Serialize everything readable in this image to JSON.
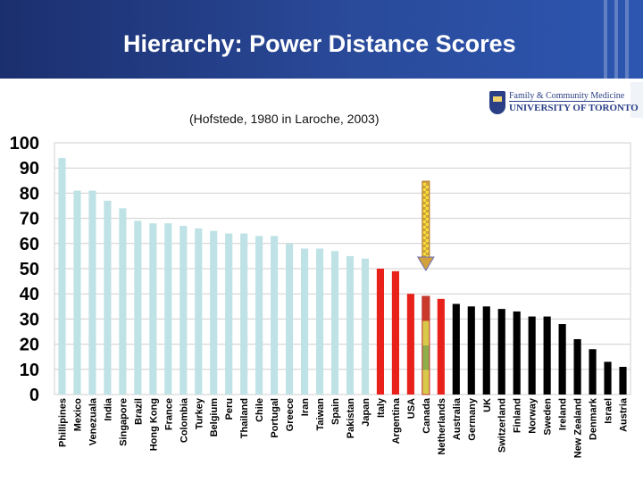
{
  "slide": {
    "title": "Hierarchy: Power Distance Scores",
    "subtitle": "(Hofstede, 1980 in Laroche, 2003)",
    "logo": {
      "line1": "Family & Community Medicine",
      "line2": "UNIVERSITY OF TORONTO"
    }
  },
  "chart_data": {
    "type": "bar",
    "title": "Hierarchy: Power Distance Scores",
    "subtitle": "(Hofstede, 1980 in Laroche, 2003)",
    "xlabel": "",
    "ylabel": "",
    "ylim": [
      0,
      100
    ],
    "yticks": [
      0,
      10,
      20,
      30,
      40,
      50,
      60,
      70,
      80,
      90,
      100
    ],
    "grid": true,
    "legend": "none",
    "highlight_arrow_category": "Canada",
    "colors": {
      "high": "#bfe2e6",
      "middle": "#e8221b",
      "canada": "#c8b63c",
      "low": "#000000",
      "arrow": "#d3a13c",
      "arrow_check": "#f3e33a",
      "grid": "#cfcfcf"
    },
    "categories": [
      "Phillipines",
      "Mexico",
      "Venezuala",
      "India",
      "Singapore",
      "Brazil",
      "Hong Kong",
      "France",
      "Colombia",
      "Turkey",
      "Belgium",
      "Peru",
      "Thailand",
      "Chile",
      "Portugal",
      "Greece",
      "Iran",
      "Taiwan",
      "Spain",
      "Pakistan",
      "Japan",
      "Italy",
      "Argentina",
      "USA",
      "Canada",
      "Netherlands",
      "Australia",
      "Germany",
      "UK",
      "Switzerland",
      "Finland",
      "Norway",
      "Sweden",
      "Ireland",
      "New Zealand",
      "Denmark",
      "Israel",
      "Austria"
    ],
    "values": [
      94,
      81,
      81,
      77,
      74,
      69,
      68,
      68,
      67,
      66,
      65,
      64,
      64,
      63,
      63,
      60,
      58,
      58,
      57,
      55,
      54,
      50,
      49,
      40,
      39,
      38,
      36,
      35,
      35,
      34,
      33,
      31,
      31,
      28,
      22,
      18,
      13,
      11
    ],
    "groups": [
      "high",
      "high",
      "high",
      "high",
      "high",
      "high",
      "high",
      "high",
      "high",
      "high",
      "high",
      "high",
      "high",
      "high",
      "high",
      "high",
      "high",
      "high",
      "high",
      "high",
      "high",
      "middle",
      "middle",
      "middle",
      "canada",
      "middle",
      "low",
      "low",
      "low",
      "low",
      "low",
      "low",
      "low",
      "low",
      "low",
      "low",
      "low",
      "low"
    ]
  }
}
